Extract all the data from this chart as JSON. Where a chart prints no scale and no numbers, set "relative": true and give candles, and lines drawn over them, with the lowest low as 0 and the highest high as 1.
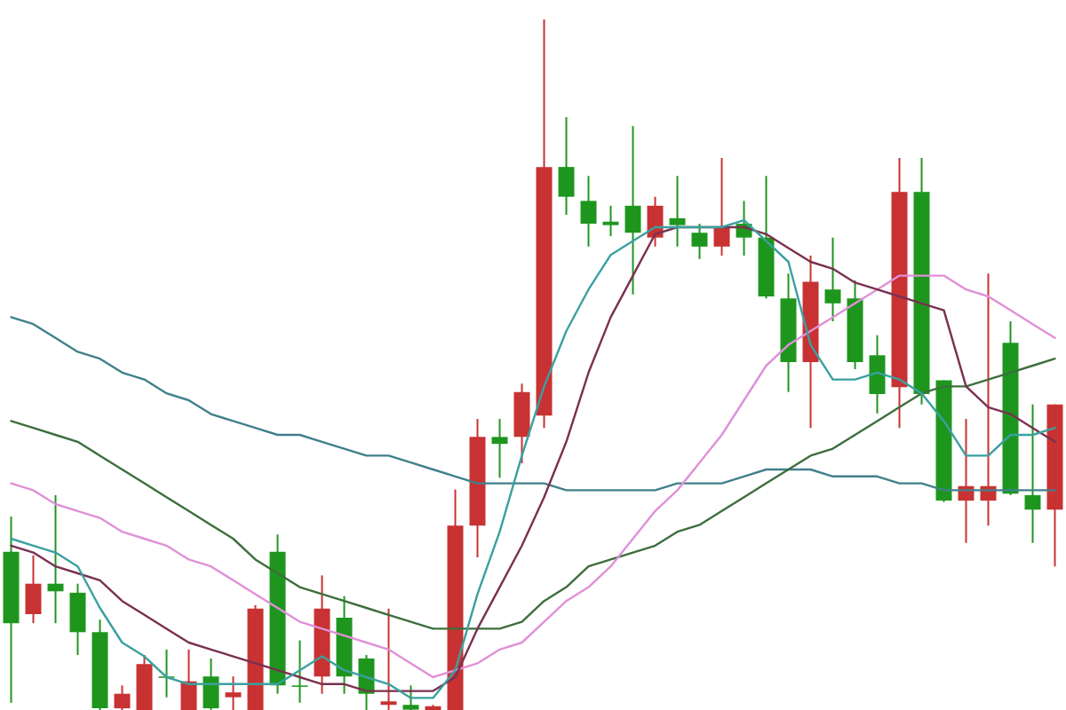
{
  "chart_data": {
    "type": "candlestick",
    "relative": true,
    "categories": [
      null,
      null,
      null,
      null,
      null,
      null,
      null,
      null,
      null,
      null,
      null,
      null,
      null,
      null,
      null,
      null,
      null,
      null,
      null,
      null,
      null,
      null,
      null,
      null,
      null,
      null,
      null,
      null,
      null,
      null,
      null,
      null,
      null,
      null,
      null,
      null,
      null,
      null,
      null,
      null,
      null,
      null,
      null,
      null,
      null,
      null,
      null,
      null
    ],
    "ohlc": [
      [
        0.231,
        0.282,
        0.013,
        0.128
      ],
      [
        0.141,
        0.226,
        0.128,
        0.185
      ],
      [
        0.185,
        0.313,
        0.128,
        0.174
      ],
      [
        0.172,
        0.185,
        0.082,
        0.115
      ],
      [
        0.115,
        0.133,
        0,
        0.005
      ],
      [
        0.005,
        0.038,
        0,
        0.026
      ],
      [
        0,
        0.082,
        0,
        0.069
      ],
      [
        0.051,
        0.09,
        0.021,
        0.049
      ],
      [
        0,
        0.09,
        0,
        0.044
      ],
      [
        0.051,
        0.077,
        0,
        0.005
      ],
      [
        0.021,
        0.051,
        0,
        0.028
      ],
      [
        0,
        0.154,
        0,
        0.149
      ],
      [
        0.231,
        0.256,
        0.026,
        0.038
      ],
      [
        0.038,
        0.103,
        0.013,
        0.036
      ],
      [
        0.051,
        0.197,
        0.026,
        0.149
      ],
      [
        0.136,
        0.167,
        0.026,
        0.051
      ],
      [
        0.077,
        0.082,
        0,
        0.026
      ],
      [
        0.01,
        0.149,
        0,
        0.015
      ],
      [
        0.01,
        0.038,
        0,
        0.003
      ],
      [
        0,
        0.01,
        0,
        0.008
      ],
      [
        0,
        0.321,
        0,
        0.269
      ],
      [
        0.269,
        0.423,
        0.223,
        0.397
      ],
      [
        0.397,
        0.423,
        0.338,
        0.387
      ],
      [
        0.397,
        0.474,
        0.359,
        0.462
      ],
      [
        0.428,
        1,
        0.41,
        0.787
      ],
      [
        0.787,
        0.859,
        0.718,
        0.744
      ],
      [
        0.738,
        0.774,
        0.672,
        0.705
      ],
      [
        0.708,
        0.731,
        0.687,
        0.703
      ],
      [
        0.731,
        0.846,
        0.603,
        0.692
      ],
      [
        0.685,
        0.744,
        0.672,
        0.731
      ],
      [
        0.713,
        0.774,
        0.672,
        0.703
      ],
      [
        0.692,
        0.705,
        0.654,
        0.672
      ],
      [
        0.672,
        0.8,
        0.659,
        0.7
      ],
      [
        0.705,
        0.738,
        0.659,
        0.685
      ],
      [
        0.685,
        0.774,
        0.597,
        0.6
      ],
      [
        0.597,
        0.633,
        0.462,
        0.505
      ],
      [
        0.505,
        0.659,
        0.41,
        0.621
      ],
      [
        0.61,
        0.685,
        0.564,
        0.59
      ],
      [
        0.597,
        0.623,
        0.495,
        0.505
      ],
      [
        0.515,
        0.544,
        0.431,
        0.459
      ],
      [
        0.469,
        0.8,
        0.41,
        0.751
      ],
      [
        0.751,
        0.8,
        0.444,
        0.459
      ],
      [
        0.479,
        0.479,
        0.303,
        0.305
      ],
      [
        0.305,
        0.423,
        0.244,
        0.326
      ],
      [
        0.305,
        0.633,
        0.269,
        0.326
      ],
      [
        0.533,
        0.564,
        0.313,
        0.315
      ],
      [
        0.313,
        0.444,
        0.244,
        0.292
      ],
      [
        0.292,
        0.444,
        0.21,
        0.444
      ]
    ],
    "colors": [
      "#1e961e",
      "#c83232",
      "#1e961e",
      "#1e961e",
      "#1e961e",
      "#c83232",
      "#c83232",
      "#1e961e",
      "#c83232",
      "#1e961e",
      "#c83232",
      "#c83232",
      "#1e961e",
      "#1e961e",
      "#c83232",
      "#1e961e",
      "#1e961e",
      "#c83232",
      "#1e961e",
      "#c83232",
      "#c83232",
      "#c83232",
      "#1e961e",
      "#c83232",
      "#c83232",
      "#1e961e",
      "#1e961e",
      "#1e961e",
      "#1e961e",
      "#c83232",
      "#1e961e",
      "#1e961e",
      "#c83232",
      "#1e961e",
      "#1e961e",
      "#1e961e",
      "#c83232",
      "#1e961e",
      "#1e961e",
      "#1e961e",
      "#c83232",
      "#1e961e",
      "#1e961e",
      "#c83232",
      "#c83232",
      "#1e961e",
      "#1e961e",
      "#c83232"
    ],
    "series": [
      {
        "type": "line",
        "color": "#40808a",
        "values": [
          0.57,
          0.56,
          0.54,
          0.52,
          0.51,
          0.49,
          0.48,
          0.46,
          0.45,
          0.43,
          0.42,
          0.41,
          0.4,
          0.4,
          0.39,
          0.38,
          0.37,
          0.37,
          0.36,
          0.35,
          0.34,
          0.33,
          0.33,
          0.33,
          0.33,
          0.32,
          0.32,
          0.32,
          0.32,
          0.32,
          0.33,
          0.33,
          0.33,
          0.34,
          0.35,
          0.35,
          0.35,
          0.34,
          0.34,
          0.34,
          0.33,
          0.33,
          0.32,
          0.32,
          0.32,
          0.32,
          0.32,
          0.32
        ]
      },
      {
        "type": "line",
        "color": "#3c6e3c",
        "values": [
          0.42,
          0.41,
          0.4,
          0.39,
          0.37,
          0.35,
          0.33,
          0.31,
          0.29,
          0.27,
          0.25,
          0.22,
          0.2,
          0.18,
          0.17,
          0.16,
          0.15,
          0.14,
          0.13,
          0.12,
          0.12,
          0.12,
          0.12,
          0.13,
          0.16,
          0.18,
          0.21,
          0.22,
          0.23,
          0.24,
          0.26,
          0.27,
          0.29,
          0.31,
          0.33,
          0.35,
          0.37,
          0.38,
          0.4,
          0.42,
          0.44,
          0.46,
          0.47,
          0.47,
          0.48,
          0.49,
          0.5,
          0.51
        ]
      },
      {
        "type": "line",
        "color": "#e090d8",
        "values": [
          0.33,
          0.32,
          0.3,
          0.29,
          0.28,
          0.26,
          0.25,
          0.24,
          0.22,
          0.21,
          0.19,
          0.17,
          0.15,
          0.13,
          0.12,
          0.11,
          0.1,
          0.09,
          0.07,
          0.05,
          0.06,
          0.07,
          0.09,
          0.1,
          0.13,
          0.16,
          0.18,
          0.21,
          0.25,
          0.29,
          0.32,
          0.36,
          0.4,
          0.45,
          0.5,
          0.53,
          0.55,
          0.57,
          0.59,
          0.61,
          0.63,
          0.63,
          0.63,
          0.61,
          0.6,
          0.58,
          0.56,
          0.54
        ]
      },
      {
        "type": "line",
        "color": "#7a3050",
        "values": [
          0.24,
          0.23,
          0.21,
          0.2,
          0.19,
          0.16,
          0.14,
          0.12,
          0.1,
          0.09,
          0.08,
          0.07,
          0.06,
          0.05,
          0.04,
          0.04,
          0.03,
          0.03,
          0.03,
          0.03,
          0.05,
          0.12,
          0.18,
          0.24,
          0.31,
          0.39,
          0.49,
          0.57,
          0.63,
          0.69,
          0.7,
          0.7,
          0.7,
          0.7,
          0.69,
          0.67,
          0.65,
          0.64,
          0.62,
          0.61,
          0.6,
          0.59,
          0.58,
          0.47,
          0.44,
          0.43,
          0.41,
          0.39
        ]
      },
      {
        "type": "line",
        "color": "#3aa0a0",
        "values": [
          0.25,
          0.24,
          0.23,
          0.21,
          0.15,
          0.1,
          0.08,
          0.05,
          0.04,
          0.04,
          0.04,
          0.04,
          0.04,
          0.06,
          0.08,
          0.06,
          0.05,
          0.04,
          0.02,
          0.02,
          0.06,
          0.17,
          0.26,
          0.37,
          0.47,
          0.55,
          0.61,
          0.66,
          0.68,
          0.7,
          0.7,
          0.7,
          0.7,
          0.71,
          0.68,
          0.65,
          0.53,
          0.48,
          0.48,
          0.49,
          0.48,
          0.46,
          0.42,
          0.37,
          0.37,
          0.4,
          0.4,
          0.41
        ]
      }
    ]
  }
}
